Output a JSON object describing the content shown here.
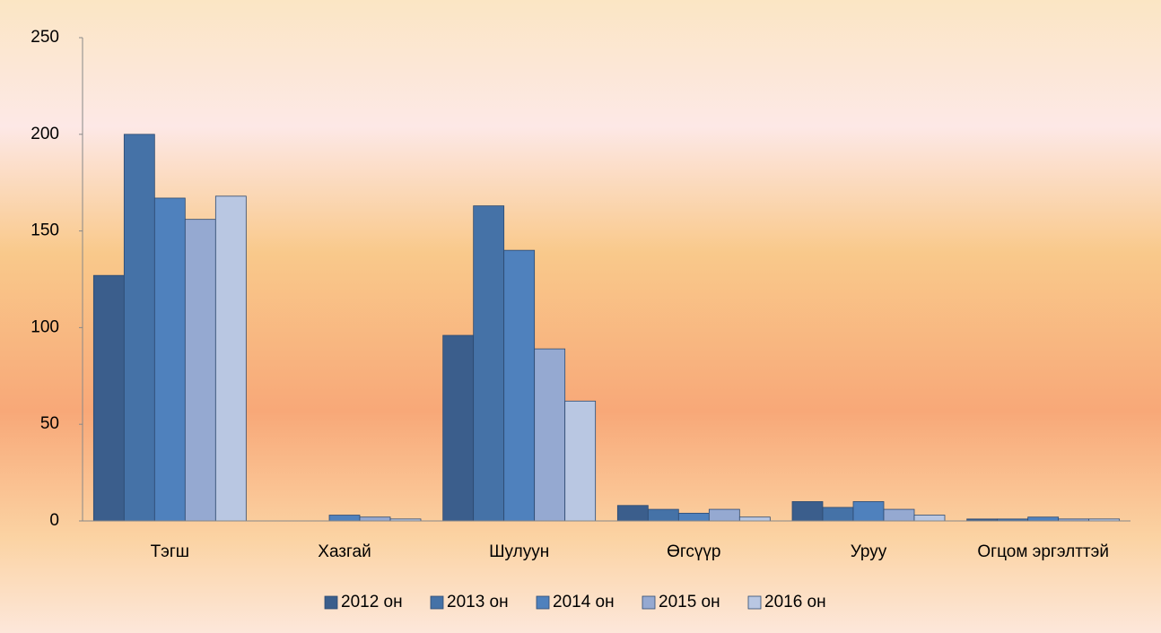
{
  "chart_data": {
    "type": "bar",
    "categories": [
      "Тэгш",
      "Хазгай",
      "Шулуун",
      "Өгсүүр",
      "Уруу",
      "Огцом эргэлттэй"
    ],
    "series": [
      {
        "name": "2012 он",
        "color": "#3b5e8c",
        "values": [
          127,
          0,
          96,
          8,
          10,
          1
        ]
      },
      {
        "name": "2013 он",
        "color": "#4572a7",
        "values": [
          200,
          0,
          163,
          6,
          7,
          1
        ]
      },
      {
        "name": "2014 он",
        "color": "#4f81bd",
        "values": [
          167,
          3,
          140,
          4,
          10,
          2
        ]
      },
      {
        "name": "2015 он",
        "color": "#95a9d1",
        "values": [
          156,
          2,
          89,
          6,
          6,
          1
        ]
      },
      {
        "name": "2016 он",
        "color": "#b9c7e2",
        "values": [
          168,
          1,
          62,
          2,
          3,
          1
        ]
      }
    ],
    "ylim": [
      0,
      250
    ],
    "yticks": [
      0,
      50,
      100,
      150,
      200,
      250
    ],
    "legend": "bottom"
  }
}
